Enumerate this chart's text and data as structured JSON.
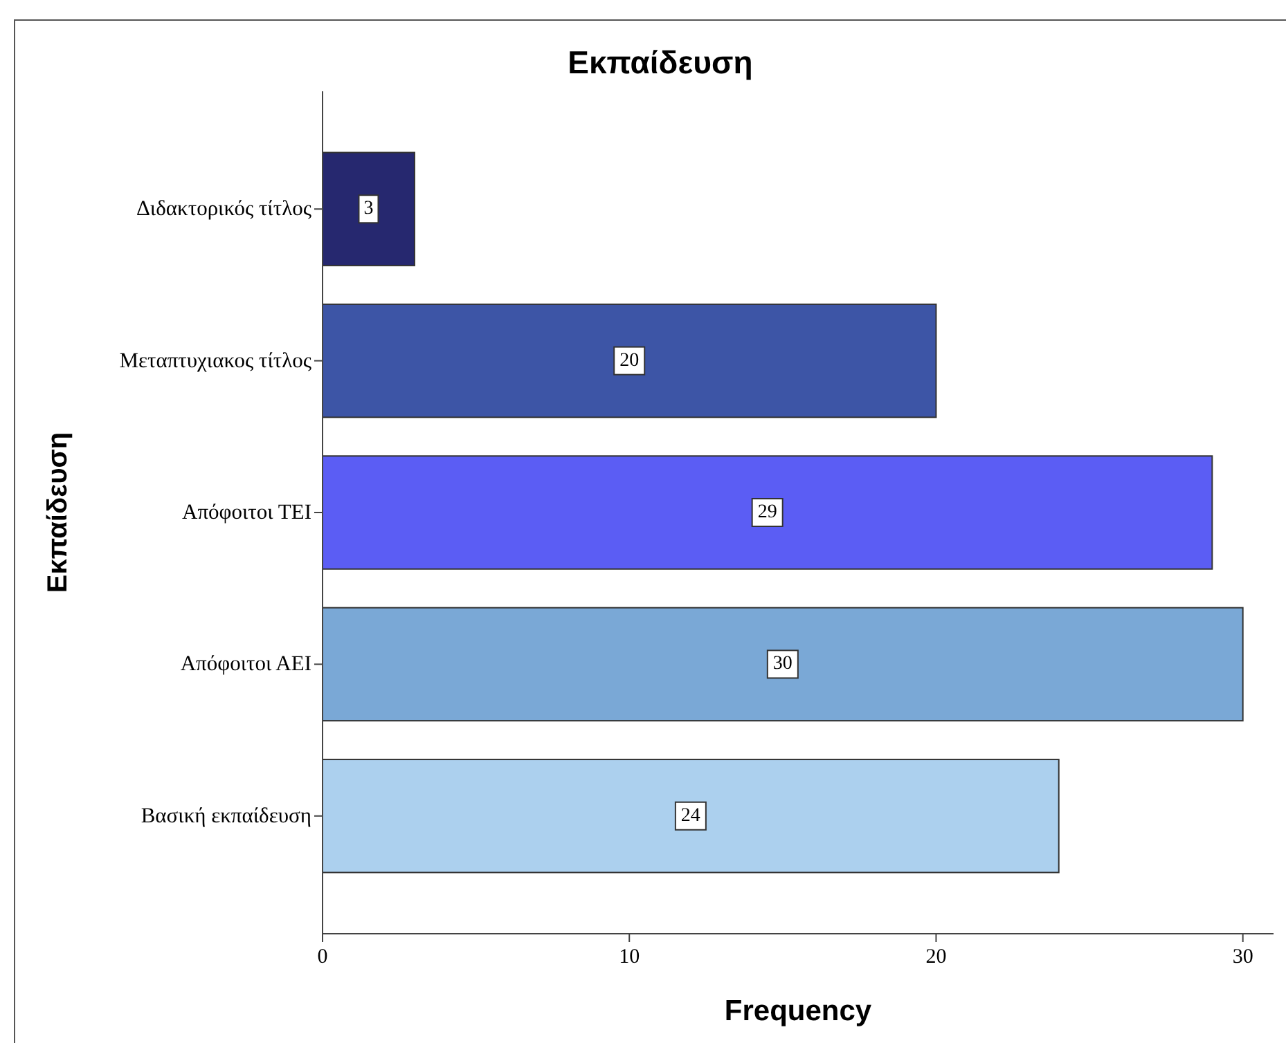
{
  "chart_data": {
    "type": "bar",
    "orientation": "horizontal",
    "title": "Εκπαίδευση",
    "xlabel": "Frequency",
    "ylabel": "Εκπαίδευση",
    "categories": [
      "Διδακτορικός τίτλος",
      "Μεταπτυχιακος τίτλος",
      "Απόφοιτοι ΤΕΙ",
      "Απόφοιτοι ΑΕΙ",
      "Βασική εκπαίδευση"
    ],
    "values": [
      3,
      20,
      29,
      30,
      24
    ],
    "colors": [
      "#26286f",
      "#3d55a6",
      "#5b5df4",
      "#7aa8d6",
      "#acd0ee"
    ],
    "xlim": [
      0,
      31
    ],
    "xticks": [
      0,
      10,
      20,
      30
    ],
    "data_labels": true,
    "grid": false
  }
}
